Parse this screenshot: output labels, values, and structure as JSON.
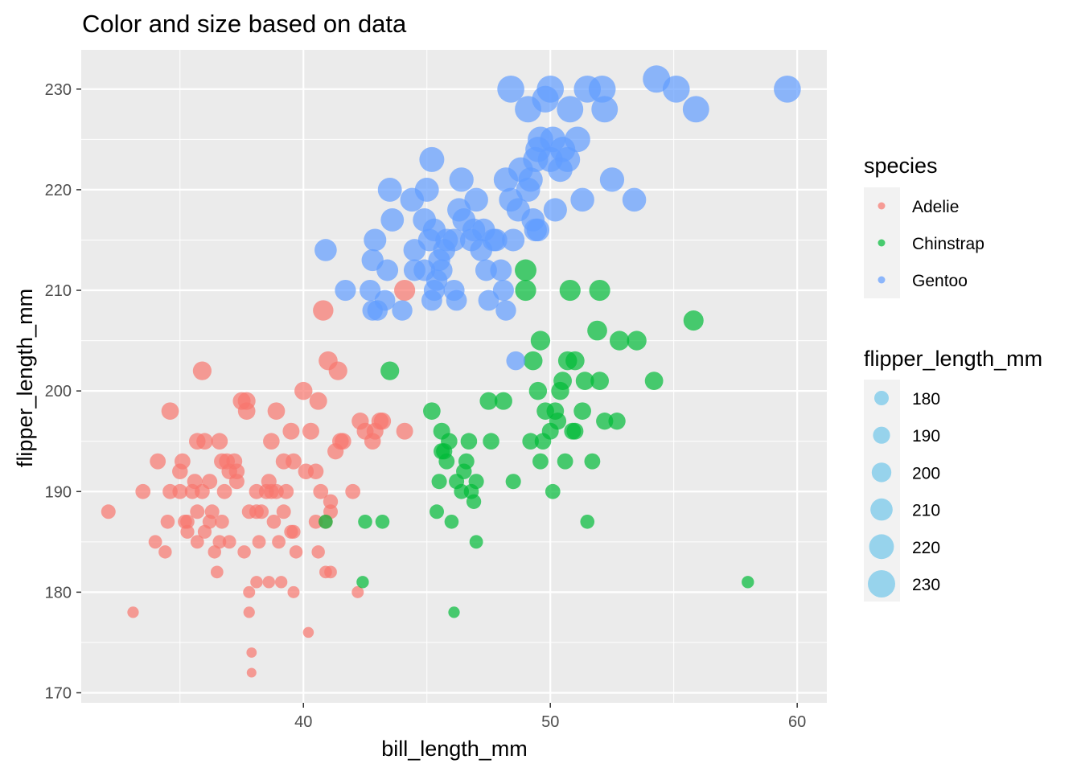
{
  "chart_data": {
    "type": "scatter",
    "title": "Color and size based on data",
    "xlabel": "bill_length_mm",
    "ylabel": "flipper_length_mm",
    "xlim": [
      31.0,
      61.2
    ],
    "ylim": [
      169.0,
      233.9
    ],
    "x_major_ticks": [
      40,
      50,
      60
    ],
    "x_minor_ticks": [
      35,
      45,
      55
    ],
    "y_major_ticks": [
      170,
      180,
      190,
      200,
      210,
      220,
      230
    ],
    "y_minor_ticks": [
      175,
      185,
      195,
      205,
      215,
      225
    ],
    "grid": true,
    "colors": {
      "Adelie": "#F8766D",
      "Chinstrap": "#00BA38",
      "Gentoo": "#619CFF",
      "size_legend": "#87CEEB",
      "panel": "#EBEBEB",
      "grid": "#FFFFFF"
    },
    "legend_species": {
      "title": "species",
      "entries": [
        "Adelie",
        "Chinstrap",
        "Gentoo"
      ]
    },
    "legend_size": {
      "title": "flipper_length_mm",
      "entries": [
        "180",
        "190",
        "200",
        "210",
        "220",
        "230"
      ]
    },
    "series": [
      {
        "name": "Adelie",
        "points": [
          [
            32.1,
            188
          ],
          [
            33.1,
            178
          ],
          [
            33.5,
            190
          ],
          [
            34.0,
            185
          ],
          [
            34.4,
            184
          ],
          [
            34.5,
            187
          ],
          [
            34.6,
            198
          ],
          [
            34.6,
            190
          ],
          [
            34.1,
            193
          ],
          [
            35.0,
            190
          ],
          [
            35.0,
            192
          ],
          [
            35.1,
            193
          ],
          [
            35.2,
            187
          ],
          [
            35.3,
            187
          ],
          [
            35.3,
            186
          ],
          [
            35.5,
            190
          ],
          [
            35.6,
            191
          ],
          [
            35.7,
            188
          ],
          [
            35.7,
            185
          ],
          [
            35.9,
            190
          ],
          [
            36.0,
            186
          ],
          [
            36.0,
            195
          ],
          [
            36.2,
            187
          ],
          [
            36.2,
            191
          ],
          [
            36.4,
            184
          ],
          [
            36.5,
            182
          ],
          [
            36.6,
            185
          ],
          [
            36.7,
            187
          ],
          [
            36.7,
            193
          ],
          [
            36.8,
            190
          ],
          [
            37.0,
            185
          ],
          [
            37.2,
            193
          ],
          [
            37.3,
            192
          ],
          [
            37.5,
            199
          ],
          [
            37.6,
            184
          ],
          [
            37.7,
            198
          ],
          [
            37.8,
            178
          ],
          [
            37.8,
            188
          ],
          [
            37.8,
            180
          ],
          [
            37.9,
            172
          ],
          [
            37.9,
            174
          ],
          [
            38.1,
            181
          ],
          [
            38.1,
            188
          ],
          [
            38.2,
            185
          ],
          [
            38.3,
            188
          ],
          [
            38.5,
            190
          ],
          [
            38.6,
            191
          ],
          [
            38.6,
            181
          ],
          [
            38.7,
            190
          ],
          [
            38.8,
            187
          ],
          [
            38.9,
            190
          ],
          [
            39.0,
            185
          ],
          [
            39.1,
            181
          ],
          [
            39.2,
            188
          ],
          [
            39.3,
            190
          ],
          [
            39.5,
            186
          ],
          [
            39.6,
            186
          ],
          [
            39.6,
            180
          ],
          [
            39.7,
            184
          ],
          [
            40.2,
            176
          ],
          [
            40.3,
            196
          ],
          [
            40.5,
            187
          ],
          [
            40.6,
            184
          ],
          [
            40.7,
            190
          ],
          [
            40.8,
            208
          ],
          [
            40.9,
            187
          ],
          [
            41.0,
            203
          ],
          [
            41.1,
            182
          ],
          [
            41.3,
            194
          ],
          [
            41.4,
            202
          ],
          [
            41.5,
            195
          ],
          [
            42.0,
            190
          ],
          [
            42.2,
            180
          ],
          [
            42.3,
            197
          ],
          [
            42.5,
            196
          ],
          [
            42.9,
            196
          ],
          [
            43.2,
            197
          ],
          [
            44.1,
            210
          ],
          [
            44.1,
            196
          ],
          [
            35.9,
            202
          ],
          [
            36.6,
            195
          ],
          [
            38.9,
            198
          ],
          [
            39.5,
            196
          ],
          [
            40.0,
            200
          ],
          [
            40.6,
            199
          ],
          [
            41.6,
            195
          ],
          [
            43.1,
            197
          ],
          [
            38.7,
            195
          ],
          [
            39.6,
            193
          ],
          [
            40.5,
            192
          ],
          [
            41.1,
            189
          ],
          [
            37.7,
            199
          ],
          [
            36.9,
            193
          ],
          [
            35.7,
            195
          ],
          [
            42.8,
            195
          ],
          [
            37.3,
            191
          ],
          [
            39.2,
            193
          ],
          [
            40.1,
            192
          ],
          [
            40.9,
            182
          ],
          [
            41.1,
            188
          ],
          [
            38.1,
            190
          ],
          [
            37.0,
            192
          ],
          [
            36.3,
            188
          ]
        ]
      },
      {
        "name": "Chinstrap",
        "points": [
          [
            40.9,
            187
          ],
          [
            42.4,
            181
          ],
          [
            42.5,
            187
          ],
          [
            43.2,
            187
          ],
          [
            43.5,
            202
          ],
          [
            45.2,
            198
          ],
          [
            45.4,
            188
          ],
          [
            45.5,
            191
          ],
          [
            45.6,
            196
          ],
          [
            45.7,
            194
          ],
          [
            45.8,
            193
          ],
          [
            45.9,
            195
          ],
          [
            46.0,
            187
          ],
          [
            46.1,
            178
          ],
          [
            46.2,
            191
          ],
          [
            46.4,
            190
          ],
          [
            46.5,
            192
          ],
          [
            46.6,
            193
          ],
          [
            46.7,
            195
          ],
          [
            46.8,
            190
          ],
          [
            46.9,
            189
          ],
          [
            47.0,
            185
          ],
          [
            47.5,
            199
          ],
          [
            47.6,
            195
          ],
          [
            48.1,
            199
          ],
          [
            48.5,
            191
          ],
          [
            49.0,
            210
          ],
          [
            49.0,
            212
          ],
          [
            49.2,
            195
          ],
          [
            49.3,
            203
          ],
          [
            49.5,
            200
          ],
          [
            49.6,
            193
          ],
          [
            49.7,
            195
          ],
          [
            49.8,
            198
          ],
          [
            50.0,
            196
          ],
          [
            50.1,
            190
          ],
          [
            50.2,
            198
          ],
          [
            50.3,
            197
          ],
          [
            50.5,
            201
          ],
          [
            50.6,
            193
          ],
          [
            50.7,
            203
          ],
          [
            50.8,
            210
          ],
          [
            51.0,
            196
          ],
          [
            51.3,
            198
          ],
          [
            51.4,
            201
          ],
          [
            51.5,
            187
          ],
          [
            51.7,
            193
          ],
          [
            52.0,
            201
          ],
          [
            52.2,
            197
          ],
          [
            52.7,
            197
          ],
          [
            53.5,
            205
          ],
          [
            54.2,
            201
          ],
          [
            55.8,
            207
          ],
          [
            58.0,
            181
          ],
          [
            52.8,
            205
          ],
          [
            51.9,
            206
          ],
          [
            50.9,
            196
          ],
          [
            50.4,
            200
          ],
          [
            52.0,
            210
          ],
          [
            49.6,
            205
          ],
          [
            51.0,
            203
          ],
          [
            47.0,
            191
          ],
          [
            45.6,
            194
          ]
        ]
      },
      {
        "name": "Gentoo",
        "points": [
          [
            40.9,
            214
          ],
          [
            41.7,
            210
          ],
          [
            42.7,
            210
          ],
          [
            42.8,
            213
          ],
          [
            42.9,
            215
          ],
          [
            43.3,
            209
          ],
          [
            43.4,
            212
          ],
          [
            43.5,
            220
          ],
          [
            43.6,
            217
          ],
          [
            44.0,
            208
          ],
          [
            44.4,
            219
          ],
          [
            44.5,
            214
          ],
          [
            44.9,
            212
          ],
          [
            45.0,
            220
          ],
          [
            45.1,
            215
          ],
          [
            45.2,
            223
          ],
          [
            45.2,
            209
          ],
          [
            45.3,
            210
          ],
          [
            45.4,
            211
          ],
          [
            45.5,
            213
          ],
          [
            45.7,
            214
          ],
          [
            45.8,
            215
          ],
          [
            46.1,
            215
          ],
          [
            46.2,
            209
          ],
          [
            46.4,
            221
          ],
          [
            46.5,
            217
          ],
          [
            46.8,
            215
          ],
          [
            46.9,
            216
          ],
          [
            47.2,
            214
          ],
          [
            47.3,
            216
          ],
          [
            47.5,
            209
          ],
          [
            47.7,
            215
          ],
          [
            47.8,
            215
          ],
          [
            48.1,
            210
          ],
          [
            48.2,
            221
          ],
          [
            48.4,
            219
          ],
          [
            48.5,
            215
          ],
          [
            48.7,
            218
          ],
          [
            48.8,
            222
          ],
          [
            49.1,
            220
          ],
          [
            49.2,
            221
          ],
          [
            49.3,
            217
          ],
          [
            49.4,
            216
          ],
          [
            49.5,
            224
          ],
          [
            49.6,
            225
          ],
          [
            49.8,
            229
          ],
          [
            50.0,
            223
          ],
          [
            50.1,
            225
          ],
          [
            50.2,
            218
          ],
          [
            50.4,
            222
          ],
          [
            50.5,
            224
          ],
          [
            50.7,
            223
          ],
          [
            50.8,
            228
          ],
          [
            51.1,
            225
          ],
          [
            51.3,
            219
          ],
          [
            51.5,
            230
          ],
          [
            52.1,
            230
          ],
          [
            52.2,
            228
          ],
          [
            52.5,
            221
          ],
          [
            53.4,
            219
          ],
          [
            54.3,
            231
          ],
          [
            55.1,
            230
          ],
          [
            55.9,
            228
          ],
          [
            59.6,
            230
          ],
          [
            48.4,
            230
          ],
          [
            49.1,
            228
          ],
          [
            49.4,
            223
          ],
          [
            50.0,
            230
          ],
          [
            43.0,
            208
          ],
          [
            48.6,
            203
          ],
          [
            42.8,
            208
          ],
          [
            44.9,
            217
          ],
          [
            46.3,
            218
          ],
          [
            47.0,
            219
          ],
          [
            48.0,
            212
          ],
          [
            45.3,
            216
          ],
          [
            44.5,
            212
          ],
          [
            46.1,
            210
          ],
          [
            47.4,
            212
          ],
          [
            48.2,
            208
          ],
          [
            49.5,
            216
          ],
          [
            45.6,
            212
          ]
        ]
      }
    ]
  }
}
